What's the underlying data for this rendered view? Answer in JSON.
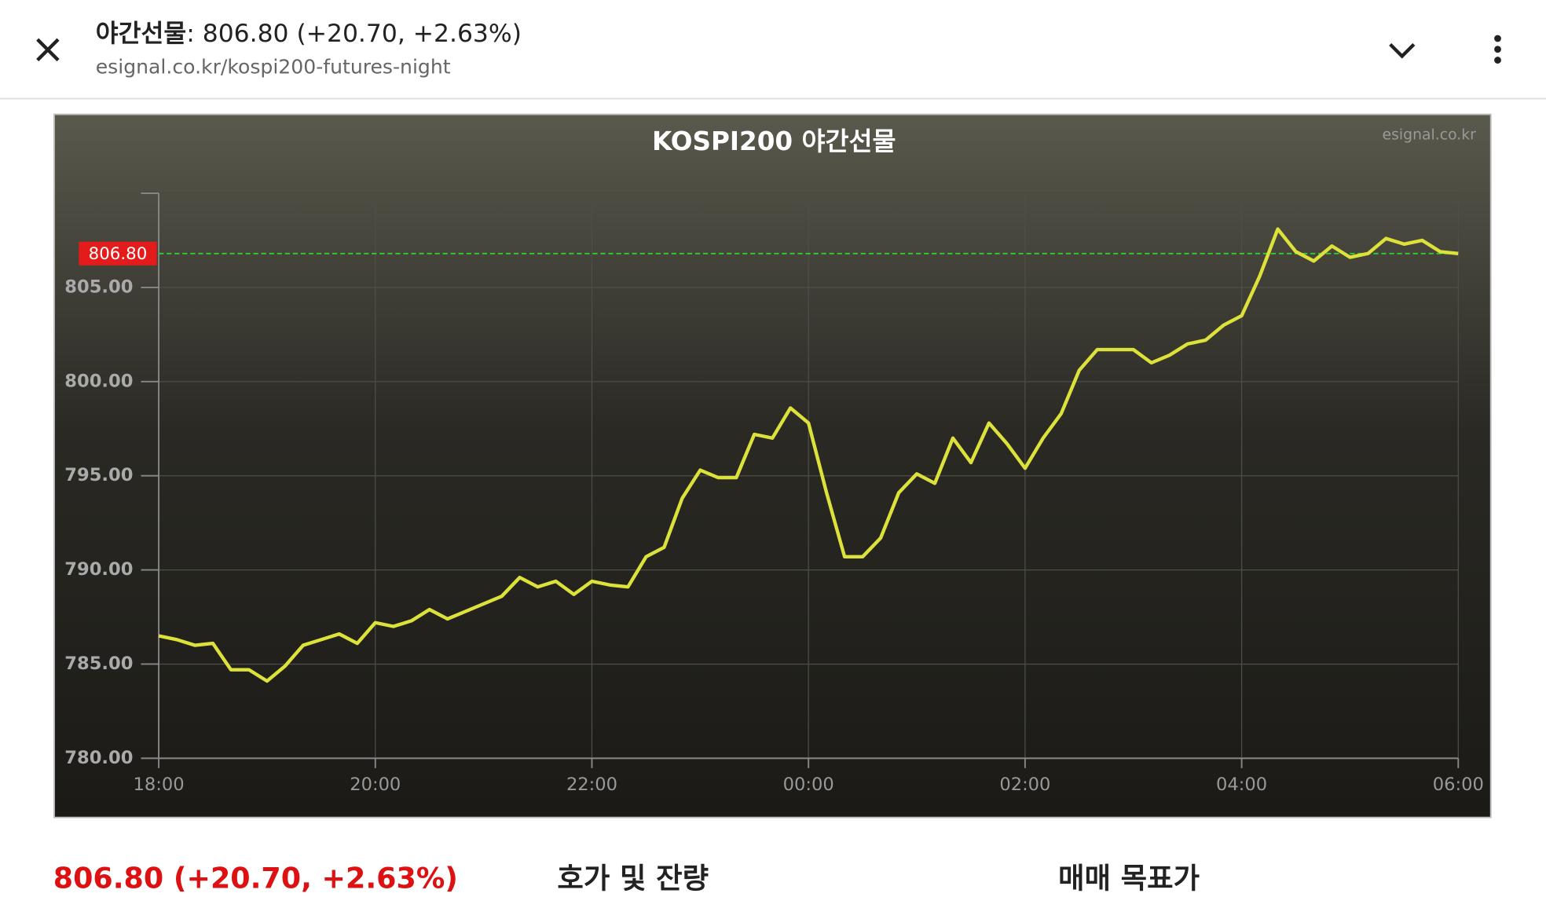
{
  "header": {
    "title_name": "야간선물",
    "title_value": ": 806.80 (+20.70, +2.63%)",
    "url": "esignal.co.kr/kospi200-futures-night"
  },
  "chart_data": {
    "type": "line",
    "title": "KOSPI200 야간선물",
    "watermark": "esignal.co.kr",
    "x": [
      "18:00",
      "18:10",
      "18:20",
      "18:30",
      "18:40",
      "18:50",
      "19:00",
      "19:10",
      "19:20",
      "19:30",
      "19:40",
      "19:50",
      "20:00",
      "20:10",
      "20:20",
      "20:30",
      "20:40",
      "20:50",
      "21:00",
      "21:10",
      "21:20",
      "21:30",
      "21:40",
      "21:50",
      "22:00",
      "22:10",
      "22:20",
      "22:30",
      "22:40",
      "22:50",
      "23:00",
      "23:10",
      "23:20",
      "23:30",
      "23:40",
      "23:50",
      "00:00",
      "00:10",
      "00:20",
      "00:30",
      "00:40",
      "00:50",
      "01:00",
      "01:10",
      "01:20",
      "01:30",
      "01:40",
      "01:50",
      "02:00",
      "02:10",
      "02:20",
      "02:30",
      "02:40",
      "02:50",
      "03:00",
      "03:10",
      "03:20",
      "03:30",
      "03:40",
      "03:50",
      "04:00",
      "04:10",
      "04:20",
      "04:30",
      "04:40",
      "04:50",
      "05:00",
      "05:10",
      "05:20",
      "05:30",
      "05:40",
      "05:50",
      "06:00"
    ],
    "series": [
      {
        "name": "KOSPI200 야간선물",
        "color": "#dde23a",
        "values": [
          786.5,
          786.3,
          786.0,
          786.1,
          784.7,
          784.7,
          784.1,
          784.9,
          786.0,
          786.3,
          786.6,
          786.1,
          787.2,
          787.0,
          787.3,
          787.9,
          787.4,
          787.8,
          788.2,
          788.6,
          789.6,
          789.1,
          789.4,
          788.7,
          789.4,
          789.2,
          789.1,
          790.7,
          791.2,
          793.8,
          795.3,
          794.9,
          794.9,
          797.2,
          797.0,
          798.6,
          797.8,
          794.1,
          790.7,
          790.7,
          791.7,
          794.1,
          795.1,
          794.6,
          797.0,
          795.7,
          797.8,
          796.7,
          795.4,
          797.0,
          798.3,
          800.6,
          801.7,
          801.7,
          801.7,
          801.0,
          801.4,
          802.0,
          802.2,
          803.0,
          803.5,
          805.6,
          808.1,
          806.9,
          806.4,
          807.2,
          806.6,
          806.8,
          807.6,
          807.3,
          807.5,
          806.9,
          806.8
        ]
      }
    ],
    "xlim": [
      "18:00",
      "06:00"
    ],
    "xticks": [
      "18:00",
      "20:00",
      "22:00",
      "00:00",
      "02:00",
      "04:00",
      "06:00"
    ],
    "ylim": [
      780,
      810
    ],
    "yticks": [
      {
        "value": 780,
        "label": "780.00"
      },
      {
        "value": 785,
        "label": "785.00"
      },
      {
        "value": 790,
        "label": "790.00"
      },
      {
        "value": 795,
        "label": "795.00"
      },
      {
        "value": 800,
        "label": "800.00"
      },
      {
        "value": 805,
        "label": "805.00"
      }
    ],
    "reference_line": {
      "value": 806.8,
      "label": "806.80",
      "color": "#33cc33"
    },
    "grid": true
  },
  "footer": {
    "price": "806.80 (+20.70, +2.63%)",
    "tab1": "호가 및 잔량",
    "tab2": "매매 목표가"
  }
}
